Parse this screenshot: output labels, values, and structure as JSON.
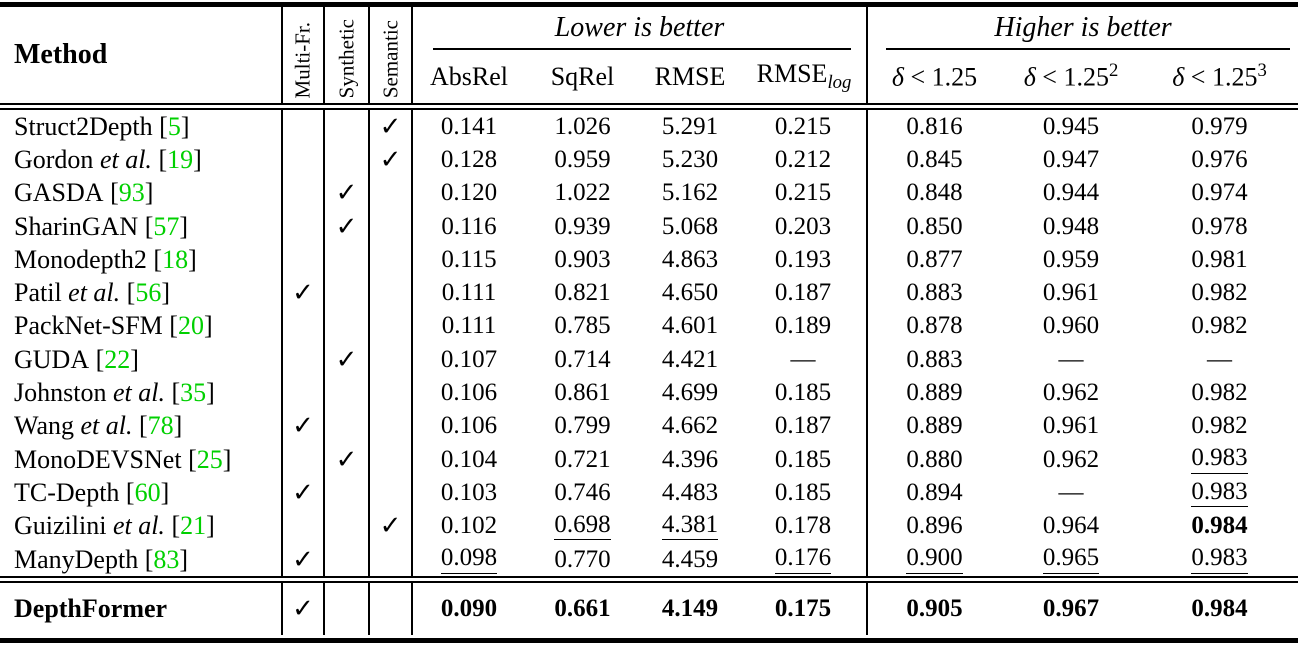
{
  "colors": {
    "citation_green": "#00d000"
  },
  "header": {
    "method_label": "Method",
    "check_columns": [
      "Multi-Fr.",
      "Synthetic",
      "Semantic"
    ],
    "lower_group": {
      "label": "Lower is better",
      "columns": [
        {
          "label": "AbsRel"
        },
        {
          "label": "SqRel"
        },
        {
          "label": "RMSE"
        },
        {
          "base": "RMSE",
          "sub": "log"
        }
      ]
    },
    "higher_group": {
      "label": "Higher is better",
      "columns": [
        {
          "sym": "δ",
          "rest": " < 1.25",
          "sup": ""
        },
        {
          "sym": "δ",
          "rest": " < 1.25",
          "sup": "2"
        },
        {
          "sym": "δ",
          "rest": " < 1.25",
          "sup": "3"
        }
      ]
    }
  },
  "metric_keys": [
    "absrel",
    "sqrel",
    "rmse",
    "rmse-log",
    "delta1",
    "delta2",
    "delta3"
  ],
  "body_rows": [
    {
      "method": {
        "name": "Struct2Depth",
        "etal": false,
        "cite": "5",
        "bold": false
      },
      "checks": {
        "multi_fr": false,
        "synthetic": false,
        "semantic": true
      },
      "metrics": [
        {
          "v": "0.141",
          "s": "p"
        },
        {
          "v": "1.026",
          "s": "p"
        },
        {
          "v": "5.291",
          "s": "p"
        },
        {
          "v": "0.215",
          "s": "p"
        },
        {
          "v": "0.816",
          "s": "p"
        },
        {
          "v": "0.945",
          "s": "p"
        },
        {
          "v": "0.979",
          "s": "p"
        }
      ]
    },
    {
      "method": {
        "name": "Gordon",
        "etal": true,
        "cite": "19",
        "bold": false
      },
      "checks": {
        "multi_fr": false,
        "synthetic": false,
        "semantic": true
      },
      "metrics": [
        {
          "v": "0.128",
          "s": "p"
        },
        {
          "v": "0.959",
          "s": "p"
        },
        {
          "v": "5.230",
          "s": "p"
        },
        {
          "v": "0.212",
          "s": "p"
        },
        {
          "v": "0.845",
          "s": "p"
        },
        {
          "v": "0.947",
          "s": "p"
        },
        {
          "v": "0.976",
          "s": "p"
        }
      ]
    },
    {
      "method": {
        "name": "GASDA",
        "etal": false,
        "cite": "93",
        "bold": false
      },
      "checks": {
        "multi_fr": false,
        "synthetic": true,
        "semantic": false
      },
      "metrics": [
        {
          "v": "0.120",
          "s": "p"
        },
        {
          "v": "1.022",
          "s": "p"
        },
        {
          "v": "5.162",
          "s": "p"
        },
        {
          "v": "0.215",
          "s": "p"
        },
        {
          "v": "0.848",
          "s": "p"
        },
        {
          "v": "0.944",
          "s": "p"
        },
        {
          "v": "0.974",
          "s": "p"
        }
      ]
    },
    {
      "method": {
        "name": "SharinGAN",
        "etal": false,
        "cite": "57",
        "bold": false
      },
      "checks": {
        "multi_fr": false,
        "synthetic": true,
        "semantic": false
      },
      "metrics": [
        {
          "v": "0.116",
          "s": "p"
        },
        {
          "v": "0.939",
          "s": "p"
        },
        {
          "v": "5.068",
          "s": "p"
        },
        {
          "v": "0.203",
          "s": "p"
        },
        {
          "v": "0.850",
          "s": "p"
        },
        {
          "v": "0.948",
          "s": "p"
        },
        {
          "v": "0.978",
          "s": "p"
        }
      ]
    },
    {
      "method": {
        "name": "Monodepth2",
        "etal": false,
        "cite": "18",
        "bold": false
      },
      "checks": {
        "multi_fr": false,
        "synthetic": false,
        "semantic": false
      },
      "metrics": [
        {
          "v": "0.115",
          "s": "p"
        },
        {
          "v": "0.903",
          "s": "p"
        },
        {
          "v": "4.863",
          "s": "p"
        },
        {
          "v": "0.193",
          "s": "p"
        },
        {
          "v": "0.877",
          "s": "p"
        },
        {
          "v": "0.959",
          "s": "p"
        },
        {
          "v": "0.981",
          "s": "p"
        }
      ]
    },
    {
      "method": {
        "name": "Patil",
        "etal": true,
        "cite": "56",
        "bold": false
      },
      "checks": {
        "multi_fr": true,
        "synthetic": false,
        "semantic": false
      },
      "metrics": [
        {
          "v": "0.111",
          "s": "p"
        },
        {
          "v": "0.821",
          "s": "p"
        },
        {
          "v": "4.650",
          "s": "p"
        },
        {
          "v": "0.187",
          "s": "p"
        },
        {
          "v": "0.883",
          "s": "p"
        },
        {
          "v": "0.961",
          "s": "p"
        },
        {
          "v": "0.982",
          "s": "p"
        }
      ]
    },
    {
      "method": {
        "name": "PackNet-SFM",
        "etal": false,
        "cite": "20",
        "bold": false
      },
      "checks": {
        "multi_fr": false,
        "synthetic": false,
        "semantic": false
      },
      "metrics": [
        {
          "v": "0.111",
          "s": "p"
        },
        {
          "v": "0.785",
          "s": "p"
        },
        {
          "v": "4.601",
          "s": "p"
        },
        {
          "v": "0.189",
          "s": "p"
        },
        {
          "v": "0.878",
          "s": "p"
        },
        {
          "v": "0.960",
          "s": "p"
        },
        {
          "v": "0.982",
          "s": "p"
        }
      ]
    },
    {
      "method": {
        "name": "GUDA",
        "etal": false,
        "cite": "22",
        "bold": false
      },
      "checks": {
        "multi_fr": false,
        "synthetic": true,
        "semantic": false
      },
      "metrics": [
        {
          "v": "0.107",
          "s": "p"
        },
        {
          "v": "0.714",
          "s": "p"
        },
        {
          "v": "4.421",
          "s": "p"
        },
        {
          "v": "—",
          "s": "p"
        },
        {
          "v": "0.883",
          "s": "p"
        },
        {
          "v": "—",
          "s": "p"
        },
        {
          "v": "—",
          "s": "p"
        }
      ]
    },
    {
      "method": {
        "name": "Johnston",
        "etal": true,
        "cite": "35",
        "bold": false
      },
      "checks": {
        "multi_fr": false,
        "synthetic": false,
        "semantic": false
      },
      "metrics": [
        {
          "v": "0.106",
          "s": "p"
        },
        {
          "v": "0.861",
          "s": "p"
        },
        {
          "v": "4.699",
          "s": "p"
        },
        {
          "v": "0.185",
          "s": "p"
        },
        {
          "v": "0.889",
          "s": "p"
        },
        {
          "v": "0.962",
          "s": "p"
        },
        {
          "v": "0.982",
          "s": "p"
        }
      ]
    },
    {
      "method": {
        "name": "Wang",
        "etal": true,
        "cite": "78",
        "bold": false
      },
      "checks": {
        "multi_fr": true,
        "synthetic": false,
        "semantic": false
      },
      "metrics": [
        {
          "v": "0.106",
          "s": "p"
        },
        {
          "v": "0.799",
          "s": "p"
        },
        {
          "v": "4.662",
          "s": "p"
        },
        {
          "v": "0.187",
          "s": "p"
        },
        {
          "v": "0.889",
          "s": "p"
        },
        {
          "v": "0.961",
          "s": "p"
        },
        {
          "v": "0.982",
          "s": "p"
        }
      ]
    },
    {
      "method": {
        "name": "MonoDEVSNet",
        "etal": false,
        "cite": "25",
        "bold": false
      },
      "checks": {
        "multi_fr": false,
        "synthetic": true,
        "semantic": false
      },
      "metrics": [
        {
          "v": "0.104",
          "s": "p"
        },
        {
          "v": "0.721",
          "s": "p"
        },
        {
          "v": "4.396",
          "s": "p"
        },
        {
          "v": "0.185",
          "s": "p"
        },
        {
          "v": "0.880",
          "s": "p"
        },
        {
          "v": "0.962",
          "s": "p"
        },
        {
          "v": "0.983",
          "s": "u"
        }
      ]
    },
    {
      "method": {
        "name": "TC-Depth",
        "etal": false,
        "cite": "60",
        "bold": false
      },
      "checks": {
        "multi_fr": true,
        "synthetic": false,
        "semantic": false
      },
      "metrics": [
        {
          "v": "0.103",
          "s": "p"
        },
        {
          "v": "0.746",
          "s": "p"
        },
        {
          "v": "4.483",
          "s": "p"
        },
        {
          "v": "0.185",
          "s": "p"
        },
        {
          "v": "0.894",
          "s": "p"
        },
        {
          "v": "—",
          "s": "p"
        },
        {
          "v": "0.983",
          "s": "u"
        }
      ]
    },
    {
      "method": {
        "name": "Guizilini",
        "etal": true,
        "cite": "21",
        "bold": false
      },
      "checks": {
        "multi_fr": false,
        "synthetic": false,
        "semantic": true
      },
      "metrics": [
        {
          "v": "0.102",
          "s": "p"
        },
        {
          "v": "0.698",
          "s": "u"
        },
        {
          "v": "4.381",
          "s": "u"
        },
        {
          "v": "0.178",
          "s": "p"
        },
        {
          "v": "0.896",
          "s": "p"
        },
        {
          "v": "0.964",
          "s": "p"
        },
        {
          "v": "0.984",
          "s": "b"
        }
      ]
    },
    {
      "method": {
        "name": "ManyDepth",
        "etal": false,
        "cite": "83",
        "bold": false
      },
      "checks": {
        "multi_fr": true,
        "synthetic": false,
        "semantic": false
      },
      "metrics": [
        {
          "v": "0.098",
          "s": "u"
        },
        {
          "v": "0.770",
          "s": "p"
        },
        {
          "v": "4.459",
          "s": "p"
        },
        {
          "v": "0.176",
          "s": "u"
        },
        {
          "v": "0.900",
          "s": "u"
        },
        {
          "v": "0.965",
          "s": "u"
        },
        {
          "v": "0.983",
          "s": "u"
        }
      ]
    }
  ],
  "final_row": {
    "method": {
      "name": "DepthFormer",
      "etal": false,
      "cite": null,
      "bold": true
    },
    "checks": {
      "multi_fr": true,
      "synthetic": false,
      "semantic": false
    },
    "metrics": [
      {
        "v": "0.090",
        "s": "b"
      },
      {
        "v": "0.661",
        "s": "b"
      },
      {
        "v": "4.149",
        "s": "b"
      },
      {
        "v": "0.175",
        "s": "b"
      },
      {
        "v": "0.905",
        "s": "b"
      },
      {
        "v": "0.967",
        "s": "b"
      },
      {
        "v": "0.984",
        "s": "b"
      }
    ],
    "checkmark": "✓"
  },
  "checkmark_glyph": "✓"
}
